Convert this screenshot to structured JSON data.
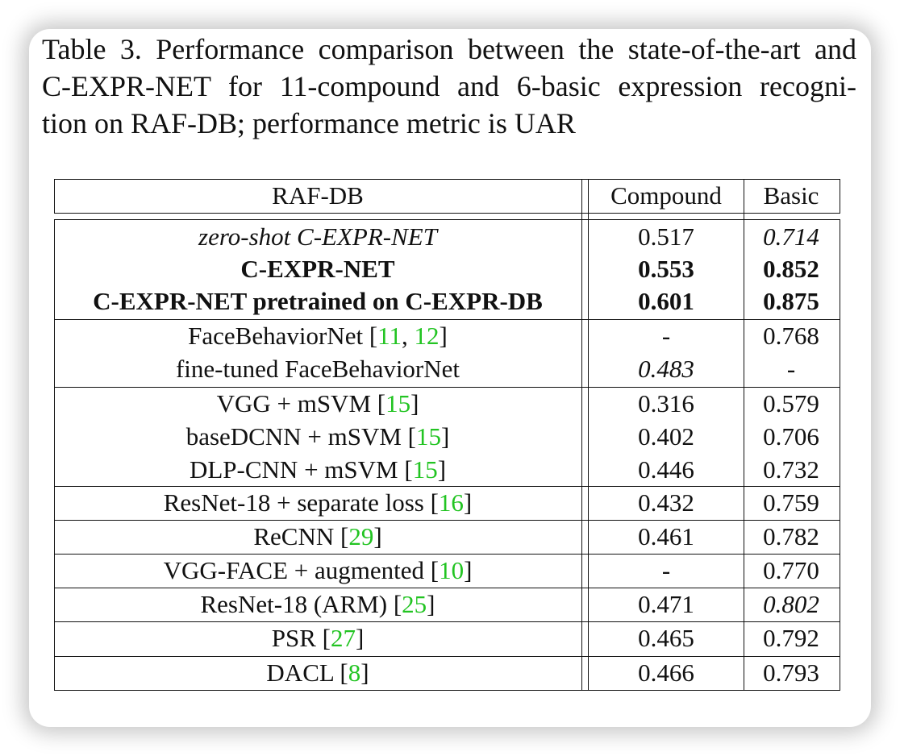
{
  "caption": {
    "line1": "Table 3. Performance comparison between the state-of-the-art and",
    "line2": "C-EXPR-NET for 11-compound and 6-basic expression recogni-",
    "line3": "tion on RAF-DB; performance metric is UAR"
  },
  "header": {
    "col1": "RAF-DB",
    "col2": "Compound",
    "col3": "Basic"
  },
  "rows": [
    {
      "method": "zero-shot C-EXPR-NET",
      "compound": "0.517",
      "basic": "0.714"
    },
    {
      "method": "C-EXPR-NET",
      "compound": "0.553",
      "basic": "0.852"
    },
    {
      "method": "C-EXPR-NET pretrained on C-EXPR-DB",
      "compound": "0.601",
      "basic": "0.875"
    },
    {
      "method": "FaceBehaviorNet [",
      "ref": "11",
      "ref2": "12",
      "compound": "-",
      "basic": "0.768"
    },
    {
      "method": "fine-tuned FaceBehaviorNet",
      "compound": "0.483",
      "basic": "-"
    },
    {
      "method": "VGG + mSVM [",
      "ref": "15",
      "compound": "0.316",
      "basic": "0.579"
    },
    {
      "method": "baseDCNN + mSVM [",
      "ref": "15",
      "compound": "0.402",
      "basic": "0.706"
    },
    {
      "method": "DLP-CNN + mSVM [",
      "ref": "15",
      "compound": "0.446",
      "basic": "0.732"
    },
    {
      "method": "ResNet-18 + separate loss [",
      "ref": "16",
      "compound": "0.432",
      "basic": "0.759"
    },
    {
      "method": "ReCNN [",
      "ref": "29",
      "compound": "0.461",
      "basic": "0.782"
    },
    {
      "method": "VGG-FACE + augmented [",
      "ref": "10",
      "compound": "-",
      "basic": "0.770"
    },
    {
      "method": "ResNet-18 (ARM) [",
      "ref": "25",
      "compound": "0.471",
      "basic": "0.802"
    },
    {
      "method": "PSR [",
      "ref": "27",
      "compound": "0.465",
      "basic": "0.792"
    },
    {
      "method": "DACL [",
      "ref": "8",
      "compound": "0.466",
      "basic": "0.793"
    }
  ],
  "ref_color": "#22c422"
}
